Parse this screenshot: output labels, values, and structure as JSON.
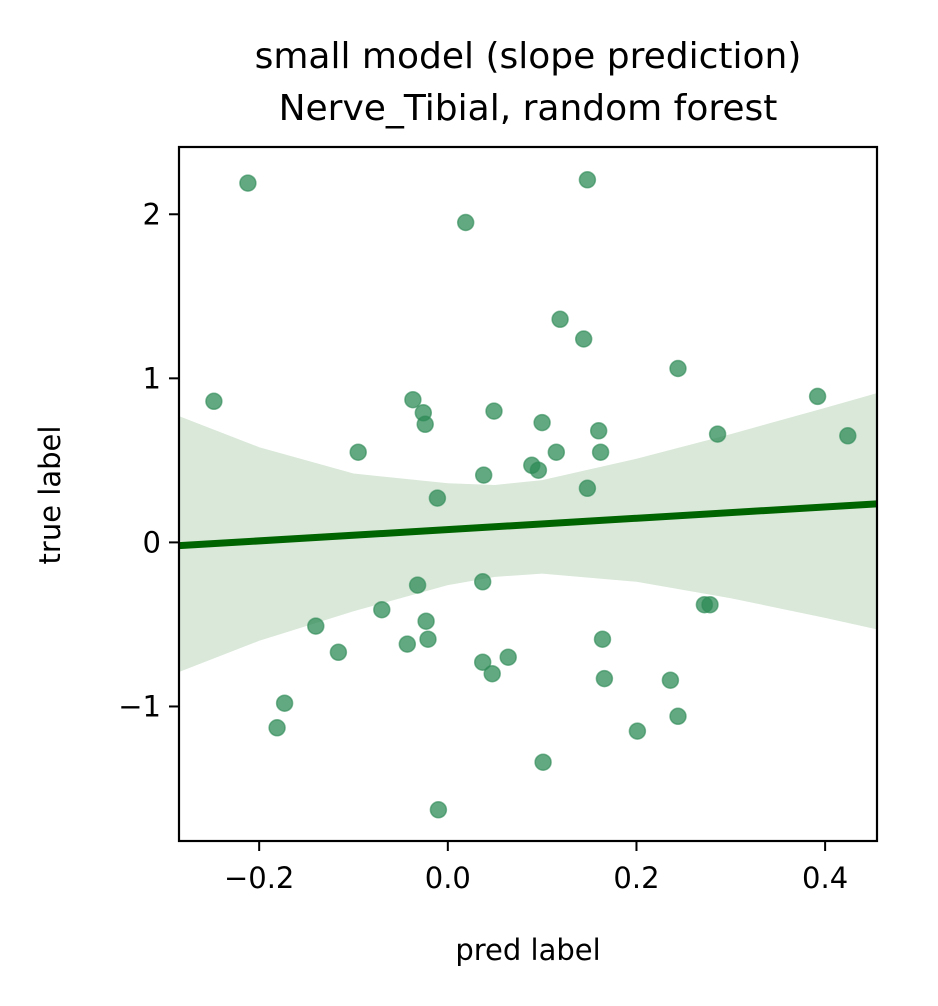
{
  "chart_data": {
    "type": "scatter",
    "title": [
      "small model (slope prediction)",
      "Nerve_Tibial, random forest"
    ],
    "xlabel": "pred label",
    "ylabel": "true label",
    "xlim": [
      -0.285,
      0.455
    ],
    "ylim": [
      -1.82,
      2.41
    ],
    "x_ticks": [
      -0.2,
      0.0,
      0.2,
      0.4
    ],
    "x_tick_labels": [
      "−0.2",
      "0.0",
      "0.2",
      "0.4"
    ],
    "y_ticks": [
      -1,
      0,
      1,
      2
    ],
    "y_tick_labels": [
      "−1",
      "0",
      "1",
      "2"
    ],
    "grid": false,
    "colors": {
      "points": "#2e8b57",
      "regression_line": "#006400",
      "confidence_band": "#d9e8d9"
    },
    "points": [
      {
        "x": -0.212,
        "y": 2.19
      },
      {
        "x": 0.148,
        "y": 2.21
      },
      {
        "x": 0.019,
        "y": 1.95
      },
      {
        "x": 0.119,
        "y": 1.36
      },
      {
        "x": 0.144,
        "y": 1.24
      },
      {
        "x": 0.244,
        "y": 1.06
      },
      {
        "x": -0.248,
        "y": 0.86
      },
      {
        "x": 0.392,
        "y": 0.89
      },
      {
        "x": -0.037,
        "y": 0.87
      },
      {
        "x": -0.026,
        "y": 0.79
      },
      {
        "x": 0.049,
        "y": 0.8
      },
      {
        "x": -0.024,
        "y": 0.72
      },
      {
        "x": 0.1,
        "y": 0.73
      },
      {
        "x": 0.16,
        "y": 0.68
      },
      {
        "x": 0.286,
        "y": 0.66
      },
      {
        "x": 0.424,
        "y": 0.65
      },
      {
        "x": -0.095,
        "y": 0.55
      },
      {
        "x": 0.115,
        "y": 0.55
      },
      {
        "x": 0.162,
        "y": 0.55
      },
      {
        "x": 0.089,
        "y": 0.47
      },
      {
        "x": 0.096,
        "y": 0.44
      },
      {
        "x": 0.038,
        "y": 0.41
      },
      {
        "x": 0.148,
        "y": 0.33
      },
      {
        "x": -0.011,
        "y": 0.27
      },
      {
        "x": -0.032,
        "y": -0.26
      },
      {
        "x": 0.037,
        "y": -0.24
      },
      {
        "x": 0.272,
        "y": -0.38
      },
      {
        "x": 0.278,
        "y": -0.38
      },
      {
        "x": -0.07,
        "y": -0.41
      },
      {
        "x": -0.023,
        "y": -0.48
      },
      {
        "x": -0.14,
        "y": -0.51
      },
      {
        "x": -0.021,
        "y": -0.59
      },
      {
        "x": 0.164,
        "y": -0.59
      },
      {
        "x": -0.043,
        "y": -0.62
      },
      {
        "x": -0.116,
        "y": -0.67
      },
      {
        "x": 0.064,
        "y": -0.7
      },
      {
        "x": 0.037,
        "y": -0.73
      },
      {
        "x": 0.047,
        "y": -0.8
      },
      {
        "x": 0.166,
        "y": -0.83
      },
      {
        "x": 0.236,
        "y": -0.84
      },
      {
        "x": -0.173,
        "y": -0.98
      },
      {
        "x": 0.244,
        "y": -1.06
      },
      {
        "x": -0.181,
        "y": -1.13
      },
      {
        "x": 0.201,
        "y": -1.15
      },
      {
        "x": 0.101,
        "y": -1.34
      },
      {
        "x": -0.01,
        "y": -1.63
      }
    ],
    "regression": {
      "x": [
        -0.285,
        0.455
      ],
      "y": [
        -0.02,
        0.235
      ]
    },
    "confidence_band": [
      {
        "x": -0.285,
        "lower": -0.79,
        "upper": 0.77
      },
      {
        "x": -0.2,
        "lower": -0.6,
        "upper": 0.58
      },
      {
        "x": -0.1,
        "lower": -0.42,
        "upper": 0.42
      },
      {
        "x": 0.0,
        "lower": -0.26,
        "upper": 0.36
      },
      {
        "x": 0.05,
        "lower": -0.21,
        "upper": 0.35
      },
      {
        "x": 0.1,
        "lower": -0.19,
        "upper": 0.38
      },
      {
        "x": 0.2,
        "lower": -0.24,
        "upper": 0.51
      },
      {
        "x": 0.3,
        "lower": -0.34,
        "upper": 0.66
      },
      {
        "x": 0.4,
        "lower": -0.46,
        "upper": 0.82
      },
      {
        "x": 0.455,
        "lower": -0.53,
        "upper": 0.91
      }
    ]
  }
}
